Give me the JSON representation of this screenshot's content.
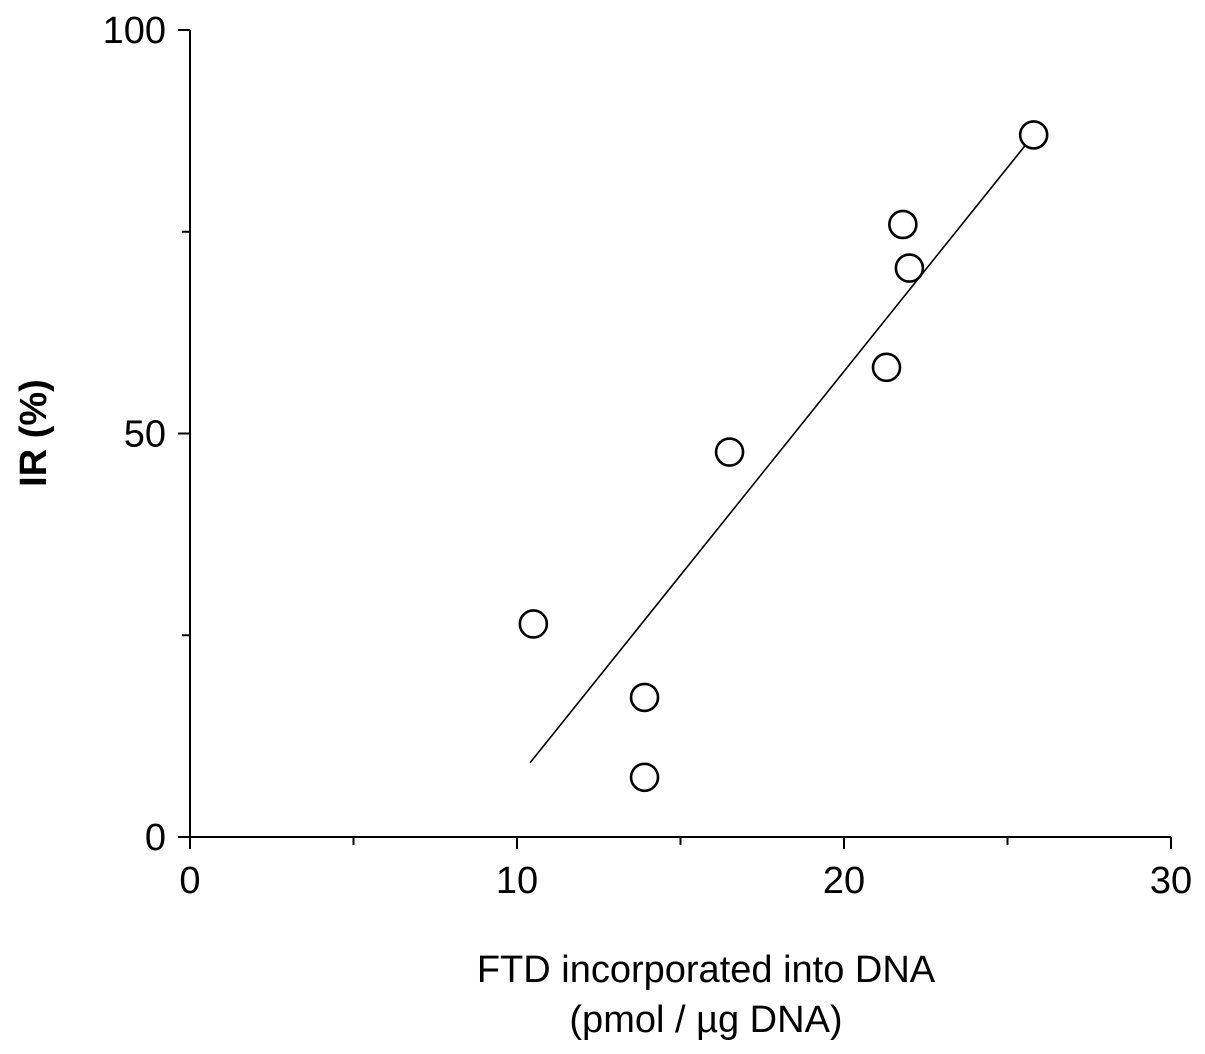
{
  "chart_data": {
    "type": "scatter",
    "title": "",
    "xlabel": [
      "FTD incorporated into DNA",
      "(pmol / µg DNA)"
    ],
    "ylabel": "IR (%)",
    "xlim": [
      0,
      30
    ],
    "ylim": [
      0,
      100
    ],
    "x_major_ticks": [
      0,
      10,
      20,
      30
    ],
    "x_minor_ticks": [
      5,
      15,
      25
    ],
    "y_major_ticks": [
      0,
      50,
      100
    ],
    "y_minor_ticks": [
      25,
      75
    ],
    "x_tick_labels": [
      "0",
      "10",
      "20",
      "30"
    ],
    "y_tick_labels": [
      "0",
      "50",
      "100"
    ],
    "grid": false,
    "series": [
      {
        "marker": "open-circle",
        "points": [
          {
            "x": 10.5,
            "y": 26.4
          },
          {
            "x": 13.9,
            "y": 17.3
          },
          {
            "x": 13.9,
            "y": 7.4
          },
          {
            "x": 16.5,
            "y": 47.7
          },
          {
            "x": 21.3,
            "y": 58.2
          },
          {
            "x": 21.8,
            "y": 75.9
          },
          {
            "x": 22.0,
            "y": 70.5
          },
          {
            "x": 25.8,
            "y": 87.0
          }
        ]
      }
    ],
    "trendline": {
      "type": "linear",
      "x": [
        10.4,
        25.8
      ],
      "y": [
        9.2,
        87.0
      ]
    },
    "colors": {
      "axis": "#000000",
      "marker_stroke": "#000000",
      "marker_fill": "#ffffff",
      "line": "#000000"
    }
  }
}
